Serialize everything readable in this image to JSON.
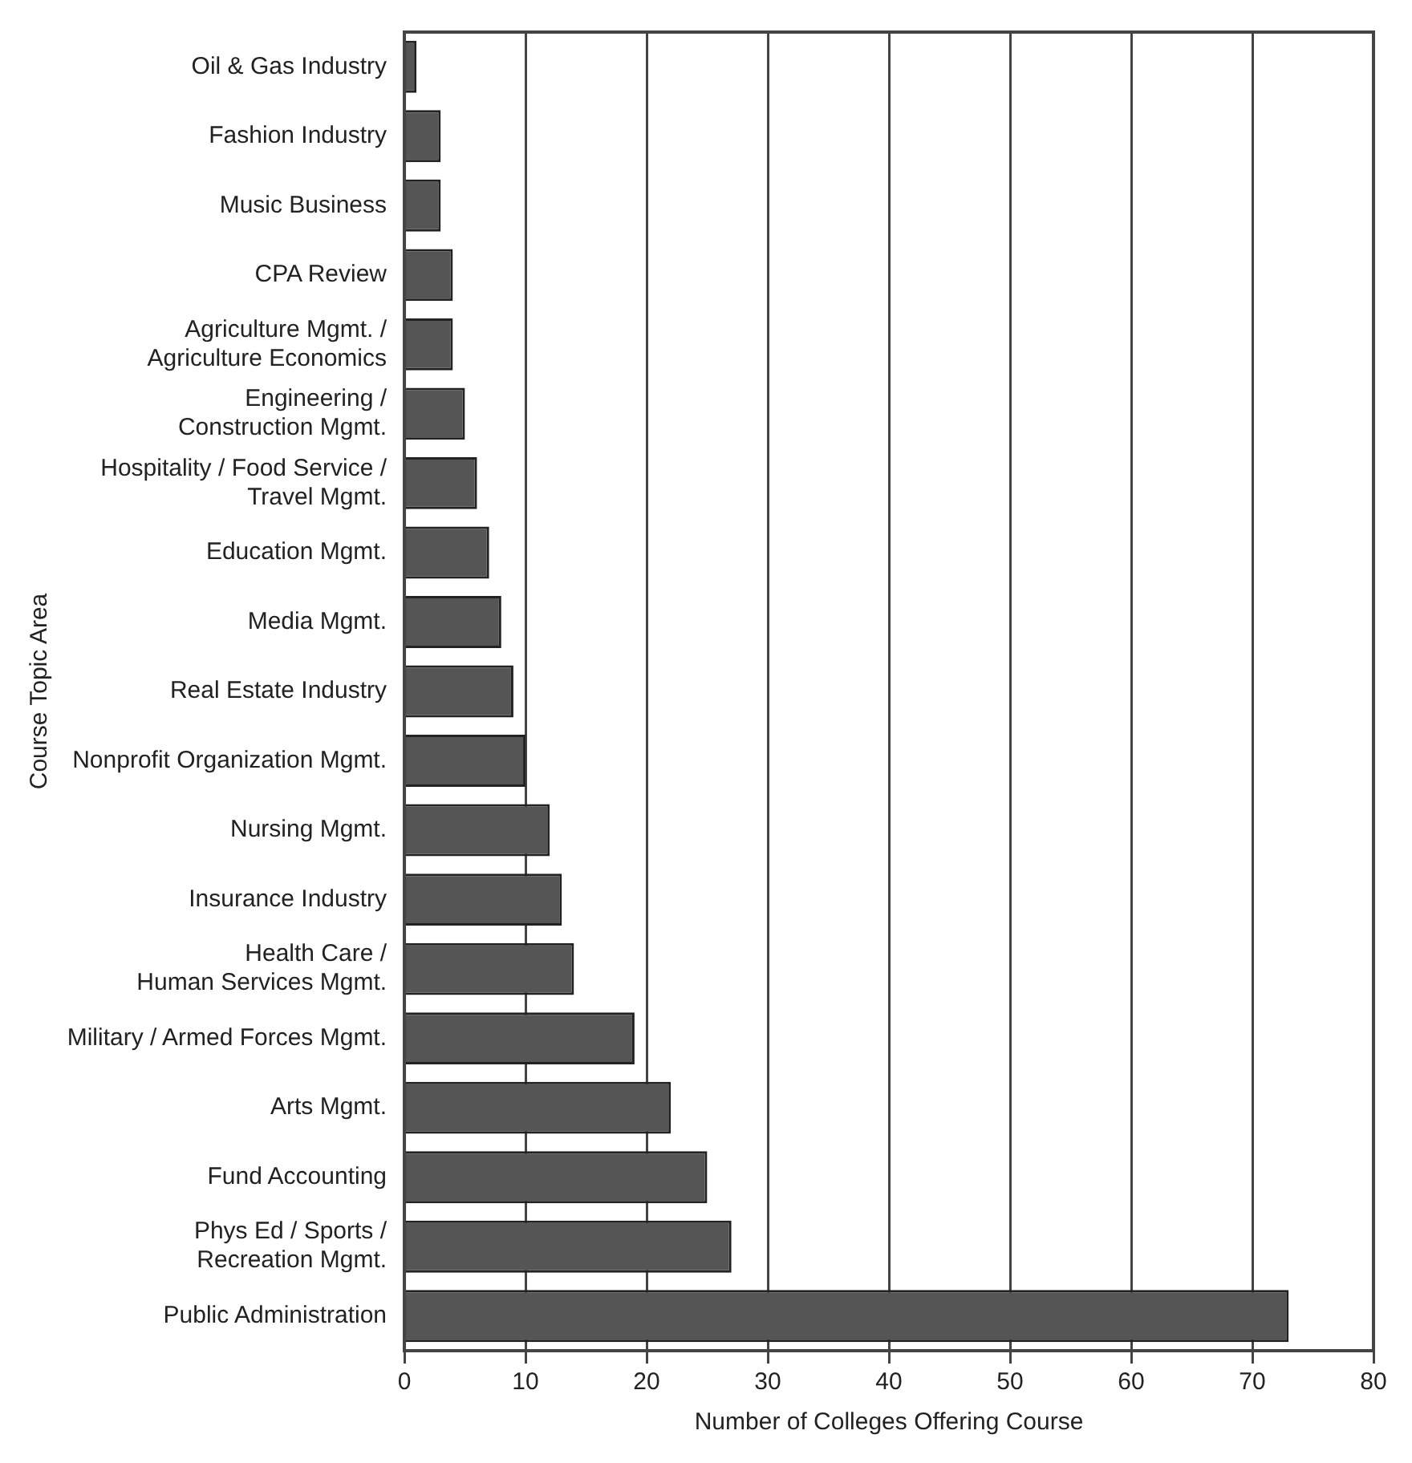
{
  "chart_data": {
    "type": "bar",
    "orientation": "horizontal",
    "xlabel": "Number of Colleges Offering Course",
    "ylabel": "Course Topic Area",
    "categories": [
      "Oil & Gas Industry",
      "Fashion Industry",
      "Music Business",
      "CPA Review",
      "Agriculture Mgmt. /\nAgriculture Economics",
      "Engineering /\nConstruction Mgmt.",
      "Hospitality / Food Service /\nTravel Mgmt.",
      "Education Mgmt.",
      "Media Mgmt.",
      "Real Estate Industry",
      "Nonprofit Organization Mgmt.",
      "Nursing Mgmt.",
      "Insurance Industry",
      "Health Care /\nHuman Services Mgmt.",
      "Military / Armed Forces Mgmt.",
      "Arts Mgmt.",
      "Fund Accounting",
      "Phys Ed / Sports /\nRecreation Mgmt.",
      "Public Administration"
    ],
    "values": [
      1,
      3,
      3,
      4,
      4,
      5,
      6,
      7,
      8,
      9,
      10,
      12,
      13,
      14,
      19,
      22,
      25,
      27,
      73
    ],
    "color": "#555555",
    "xlim": [
      0,
      80
    ],
    "xticks": [
      0,
      10,
      20,
      30,
      40,
      50,
      60,
      70,
      80
    ],
    "grid": "x",
    "legend": false
  }
}
